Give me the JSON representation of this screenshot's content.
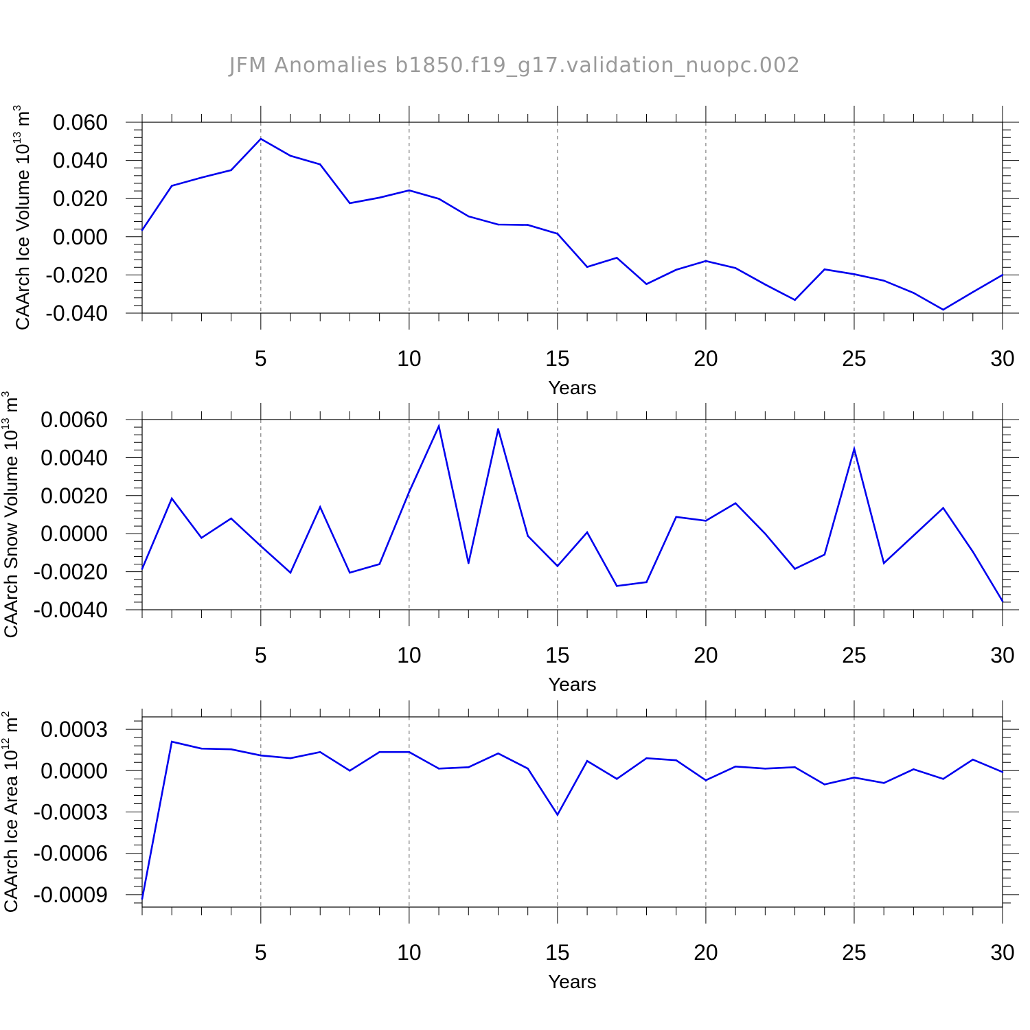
{
  "figure": {
    "title": "JFM Anomalies b1850.f19_g17.validation_nuopc.002"
  },
  "chart_data": [
    {
      "type": "line",
      "title": "",
      "xlabel": "Years",
      "ylabel": "CAArch Ice Volume 10",
      "ylabel_exp": "13",
      "ylabel_unit": " m",
      "ylabel_unit_exp": "3",
      "xlim": [
        1,
        30
      ],
      "ylim": [
        -0.04,
        0.06
      ],
      "xticks": [
        5,
        10,
        15,
        20,
        25,
        30
      ],
      "yticks": [
        0.06,
        0.04,
        0.02,
        0.0,
        -0.02,
        -0.04
      ],
      "ytick_labels": [
        "0.060",
        "0.040",
        "0.020",
        "0.000",
        "-0.020",
        "-0.040"
      ],
      "line_color": "#0000ee",
      "grid_color": "#666666",
      "series": [
        {
          "name": "CAArch Ice Volume",
          "x": [
            1,
            2,
            3,
            4,
            5,
            6,
            7,
            8,
            9,
            10,
            11,
            12,
            13,
            14,
            15,
            16,
            17,
            18,
            19,
            20,
            21,
            22,
            23,
            24,
            25,
            26,
            27,
            28,
            29,
            30
          ],
          "values": [
            0.0035,
            0.0267,
            0.031,
            0.0349,
            0.0513,
            0.0424,
            0.0379,
            0.0176,
            0.0205,
            0.0243,
            0.0199,
            0.0107,
            0.0064,
            0.0062,
            0.0016,
            -0.0158,
            -0.011,
            -0.0248,
            -0.0173,
            -0.0127,
            -0.0164,
            -0.025,
            -0.0331,
            -0.0171,
            -0.0196,
            -0.023,
            -0.0294,
            -0.0382,
            -0.029,
            -0.02
          ]
        }
      ]
    },
    {
      "type": "line",
      "title": "",
      "xlabel": "Years",
      "ylabel": "CAArch Snow Volume 10",
      "ylabel_exp": "13",
      "ylabel_unit": " m",
      "ylabel_unit_exp": "3",
      "xlim": [
        1,
        30
      ],
      "ylim": [
        -0.004,
        0.006
      ],
      "xticks": [
        5,
        10,
        15,
        20,
        25,
        30
      ],
      "yticks": [
        0.006,
        0.004,
        0.002,
        0.0,
        -0.002,
        -0.004
      ],
      "ytick_labels": [
        "0.0060",
        "0.0040",
        "0.0020",
        "0.0000",
        "-0.0020",
        "-0.0040"
      ],
      "line_color": "#0000ee",
      "grid_color": "#666666",
      "series": [
        {
          "name": "CAArch Snow Volume",
          "x": [
            1,
            2,
            3,
            4,
            5,
            6,
            7,
            8,
            9,
            10,
            11,
            12,
            13,
            14,
            15,
            16,
            17,
            18,
            19,
            20,
            21,
            22,
            23,
            24,
            25,
            26,
            27,
            28,
            29,
            30
          ],
          "values": [
            -0.00185,
            0.00185,
            -0.00022,
            0.0008,
            -0.00065,
            -0.00205,
            0.0014,
            -0.00205,
            -0.0016,
            0.0022,
            0.00565,
            -0.00155,
            0.0055,
            -0.00012,
            -0.0017,
            7e-05,
            -0.00275,
            -0.00255,
            0.00088,
            0.00068,
            0.0016,
            0.0,
            -0.00185,
            -0.0011,
            0.00445,
            -0.00155,
            -0.0001,
            0.00135,
            -0.00095,
            -0.00355
          ]
        }
      ]
    },
    {
      "type": "line",
      "title": "",
      "xlabel": "Years",
      "ylabel": "CAArch Ice Area 10",
      "ylabel_exp": "12",
      "ylabel_unit": " m",
      "ylabel_unit_exp": "2",
      "xlim": [
        1,
        30
      ],
      "ylim": [
        -0.00099,
        0.00039
      ],
      "xticks": [
        5,
        10,
        15,
        20,
        25,
        30
      ],
      "yticks": [
        0.0003,
        0.0,
        -0.0003,
        -0.0006,
        -0.0009
      ],
      "ytick_labels": [
        "0.0003",
        "0.0000",
        "-0.0003",
        "-0.0006",
        "-0.0009"
      ],
      "line_color": "#0000ee",
      "grid_color": "#666666",
      "series": [
        {
          "name": "CAArch Ice Area",
          "x": [
            1,
            2,
            3,
            4,
            5,
            6,
            7,
            8,
            9,
            10,
            11,
            12,
            13,
            14,
            15,
            16,
            17,
            18,
            19,
            20,
            21,
            22,
            23,
            24,
            25,
            26,
            27,
            28,
            29,
            30
          ],
          "values": [
            -0.00093,
            0.00021,
            0.00016,
            0.000155,
            0.00011,
            9e-05,
            0.000135,
            0.0,
            0.000135,
            0.000135,
            1.5e-05,
            2.5e-05,
            0.000125,
            1.5e-05,
            -0.00032,
            7e-05,
            -6e-05,
            9e-05,
            7.5e-05,
            -7e-05,
            3e-05,
            1.5e-05,
            2.5e-05,
            -0.0001,
            -5e-05,
            -9e-05,
            1e-05,
            -6e-05,
            8e-05,
            -1e-05
          ]
        }
      ]
    }
  ]
}
